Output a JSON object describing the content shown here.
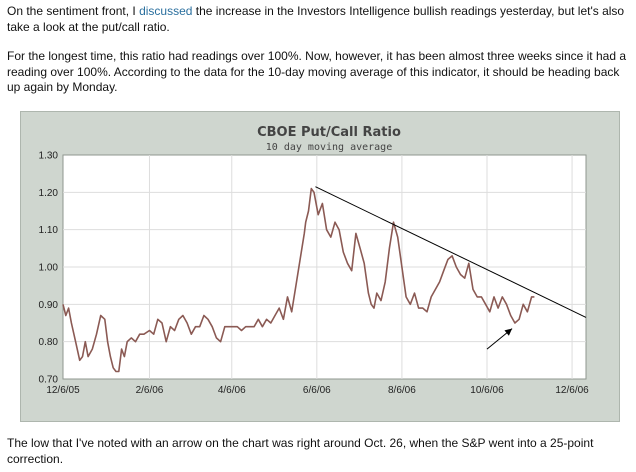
{
  "article": {
    "p1_part1": "On the sentiment front, I ",
    "p1_link": "discussed",
    "p1_part2": " the increase in the Investors Intelligence bullish readings yesterday, but let's also take a look at the put/call ratio.",
    "p2": "For the longest time, this ratio had readings over 100%. Now, however, it has been almost three weeks since it had a reading over 100%. According to the data for the 10-day moving average of this indicator, it should be heading back up again by Monday.",
    "p3": "The low that I've noted with an arrow on the chart was right around Oct. 26, when the S&P went into a 25-point correction."
  },
  "colors": {
    "chart_bg": "#cfd6cf",
    "plot_bg": "#ffffff",
    "series_line": "#8b5a54",
    "trend_line": "#000000",
    "grid": "#dddddd"
  },
  "chart_data": {
    "type": "line",
    "title": "CBOE Put/Call Ratio",
    "subtitle": "10 day moving average",
    "xlabel": "",
    "ylabel": "",
    "ylim": [
      0.7,
      1.3
    ],
    "yticks": [
      "1.30",
      "1.20",
      "1.10",
      "1.00",
      "0.90",
      "0.80",
      "0.70"
    ],
    "xlim": [
      0,
      375
    ],
    "xticks": [
      {
        "label": "12/6/05",
        "day": 0
      },
      {
        "label": "2/6/06",
        "day": 62
      },
      {
        "label": "4/6/06",
        "day": 121
      },
      {
        "label": "6/6/06",
        "day": 182
      },
      {
        "label": "8/6/06",
        "day": 243
      },
      {
        "label": "10/6/06",
        "day": 304
      },
      {
        "label": "12/6/06",
        "day": 365
      }
    ],
    "grid": true,
    "series": [
      {
        "name": "10 day moving average",
        "x": [
          0,
          2,
          4,
          6,
          9,
          12,
          14,
          16,
          18,
          21,
          24,
          27,
          30,
          32,
          34,
          36,
          38,
          40,
          42,
          44,
          46,
          49,
          52,
          55,
          58,
          62,
          65,
          68,
          71,
          74,
          77,
          80,
          83,
          86,
          89,
          92,
          95,
          98,
          101,
          104,
          107,
          110,
          113,
          116,
          119,
          122,
          125,
          128,
          131,
          134,
          137,
          140,
          143,
          146,
          149,
          152,
          155,
          158,
          161,
          164,
          167,
          170,
          173,
          174,
          176,
          178,
          180,
          183,
          186,
          189,
          192,
          195,
          198,
          201,
          204,
          207,
          210,
          213,
          216,
          219,
          221,
          223,
          225,
          228,
          231,
          234,
          237,
          240,
          243,
          246,
          249,
          252,
          255,
          258,
          261,
          264,
          267,
          270,
          273,
          276,
          279,
          282,
          285,
          288,
          291,
          294,
          297,
          300,
          303,
          306,
          309,
          312,
          315,
          318,
          321,
          324,
          327,
          330,
          333,
          336,
          338
        ],
        "values": [
          0.9,
          0.87,
          0.89,
          0.85,
          0.8,
          0.75,
          0.76,
          0.8,
          0.76,
          0.78,
          0.82,
          0.87,
          0.86,
          0.8,
          0.76,
          0.73,
          0.72,
          0.72,
          0.78,
          0.76,
          0.8,
          0.81,
          0.8,
          0.82,
          0.82,
          0.83,
          0.82,
          0.86,
          0.85,
          0.8,
          0.84,
          0.83,
          0.86,
          0.87,
          0.85,
          0.82,
          0.84,
          0.84,
          0.87,
          0.86,
          0.84,
          0.81,
          0.8,
          0.84,
          0.84,
          0.84,
          0.84,
          0.83,
          0.84,
          0.84,
          0.84,
          0.86,
          0.84,
          0.86,
          0.85,
          0.87,
          0.89,
          0.86,
          0.92,
          0.88,
          0.95,
          1.02,
          1.09,
          1.12,
          1.15,
          1.21,
          1.2,
          1.14,
          1.17,
          1.1,
          1.08,
          1.12,
          1.1,
          1.04,
          1.01,
          0.99,
          1.09,
          1.05,
          1.01,
          0.93,
          0.9,
          0.89,
          0.93,
          0.91,
          0.96,
          1.05,
          1.12,
          1.08,
          1.0,
          0.92,
          0.9,
          0.93,
          0.89,
          0.89,
          0.88,
          0.92,
          0.94,
          0.96,
          0.99,
          1.02,
          1.03,
          1.0,
          0.98,
          0.97,
          1.01,
          0.94,
          0.92,
          0.92,
          0.9,
          0.88,
          0.92,
          0.89,
          0.92,
          0.9,
          0.87,
          0.85,
          0.86,
          0.9,
          0.88,
          0.92,
          0.92
        ]
      },
      {
        "name": "trend line",
        "x": [
          181,
          375
        ],
        "values": [
          1.215,
          0.865
        ]
      }
    ],
    "annotations": [
      {
        "type": "arrow",
        "from": {
          "day": 304,
          "value": 0.78
        },
        "to": {
          "day": 322,
          "value": 0.835
        },
        "note": "low around Oct. 26"
      }
    ]
  }
}
